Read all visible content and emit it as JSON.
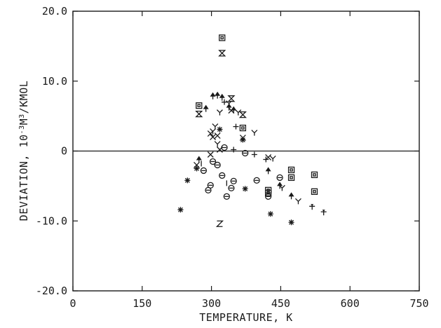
{
  "chart_data": {
    "type": "scatter",
    "title": "",
    "xlabel": "TEMPERATURE, K",
    "ylabel_prefix": "DEVIATION, 10",
    "ylabel_exp": "-3",
    "ylabel_suffix": "M",
    "ylabel_exp2": "3",
    "ylabel_unit": "/KMOL",
    "xlim": [
      0,
      750
    ],
    "ylim": [
      -20,
      20
    ],
    "xticks": [
      0,
      150,
      300,
      450,
      600,
      750
    ],
    "xtick_labels": [
      "0",
      "150",
      "300",
      "450",
      "600",
      "750"
    ],
    "yticks": [
      -20,
      -10,
      0,
      10,
      20
    ],
    "ytick_labels": [
      "-20.0",
      "-10.0",
      "0",
      "10.0",
      "20.0"
    ],
    "zero_line": true,
    "grid": false,
    "series": [
      {
        "marker": "square",
        "x": [
          273,
          323,
          368,
          423,
          473,
          523,
          473,
          523,
          423
        ],
        "y": [
          6.5,
          16.2,
          3.3,
          -5.6,
          -2.7,
          -3.4,
          -3.8,
          -5.8,
          -6.0
        ]
      },
      {
        "marker": "hourglass",
        "x": [
          323,
          343,
          368,
          273
        ],
        "y": [
          14.0,
          7.5,
          5.2,
          5.3
        ]
      },
      {
        "marker": "cross",
        "x": [
          298,
          303,
          313,
          343,
          368,
          298,
          268,
          318,
          423
        ],
        "y": [
          2.5,
          2.0,
          2.2,
          5.8,
          1.9,
          -0.5,
          -2.0,
          0.2,
          -0.9
        ]
      },
      {
        "marker": "plus",
        "x": [
          353,
          328,
          348,
          393,
          418
        ],
        "y": [
          3.5,
          7.0,
          0.2,
          -0.5,
          -1.2
        ]
      },
      {
        "marker": "arrow",
        "x": [
          288,
          303,
          313,
          323,
          338,
          348,
          273,
          423,
          448,
          473
        ],
        "y": [
          6.1,
          7.9,
          8.0,
          7.7,
          6.3,
          5.9,
          -1.2,
          -2.8,
          -4.9,
          -6.4
        ]
      },
      {
        "marker": "Y",
        "x": [
          318,
          308,
          338,
          358,
          393,
          433,
          453,
          488,
          303,
          313
        ],
        "y": [
          5.5,
          3.5,
          6.8,
          5.5,
          2.6,
          -1.1,
          -5.3,
          -7.2,
          2.8,
          1.0
        ]
      },
      {
        "marker": "circle",
        "x": [
          283,
          298,
          323,
          333,
          343,
          348,
          328,
          373,
          398,
          423,
          448,
          293,
          303,
          313
        ],
        "y": [
          -2.8,
          -4.9,
          -3.5,
          -6.5,
          -5.3,
          -4.3,
          0.5,
          -0.3,
          -4.2,
          -6.5,
          -3.8,
          -5.6,
          -1.5,
          -2.0
        ]
      },
      {
        "marker": "asterisk",
        "x": [
          248,
          268,
          318,
          368,
          428,
          473,
          233,
          373
        ],
        "y": [
          -4.2,
          -2.5,
          3.1,
          1.6,
          -9.0,
          -10.2,
          -8.4,
          -5.4
        ]
      },
      {
        "marker": "dagger",
        "x": [
          518,
          543
        ],
        "y": [
          -8.0,
          -8.8
        ]
      },
      {
        "marker": "Z",
        "x": [
          318
        ],
        "y": [
          -10.4
        ]
      },
      {
        "marker": "bar",
        "x": [
          278,
          333
        ],
        "y": [
          -1.8,
          -4.6
        ]
      }
    ]
  }
}
